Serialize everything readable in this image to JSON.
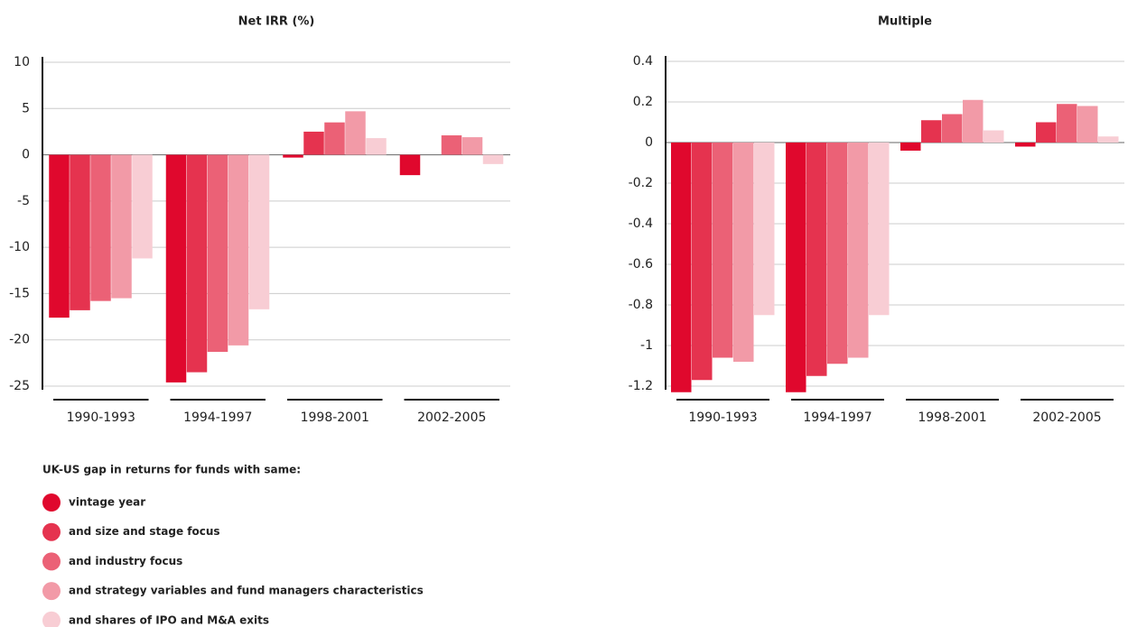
{
  "chart_data": [
    {
      "type": "bar",
      "title": "Net IRR (%)",
      "categories": [
        "1990-1993",
        "1994-1997",
        "1998-2001",
        "2002-2005"
      ],
      "ylim": [
        -25,
        10
      ],
      "yticks": [
        -25,
        -20,
        -15,
        -10,
        -5,
        0,
        5,
        10
      ],
      "grid": true,
      "legend_title": "UK-US gap in returns for funds with same:",
      "series": [
        {
          "name": "vintage year",
          "color": "#e0082d",
          "values": [
            -17.6,
            -24.6,
            -0.3,
            -2.2
          ]
        },
        {
          "name": "and size and stage focus",
          "color": "#e5334f",
          "values": [
            -16.8,
            -23.5,
            2.5,
            0
          ]
        },
        {
          "name": "and industry focus",
          "color": "#eb6176",
          "values": [
            -15.8,
            -21.3,
            3.5,
            2.1
          ]
        },
        {
          "name": "and strategy variables and fund managers characteristics",
          "color": "#f29aa7",
          "values": [
            -15.5,
            -20.6,
            4.7,
            1.9
          ]
        },
        {
          "name": "and shares of IPO and M&A exits",
          "color": "#f8cdd4",
          "values": [
            -11.2,
            -16.7,
            1.8,
            -1.0
          ]
        }
      ]
    },
    {
      "type": "bar",
      "title": "Multiple",
      "categories": [
        "1990-1993",
        "1994-1997",
        "1998-2001",
        "2002-2005"
      ],
      "ylim": [
        -1.2,
        0.4
      ],
      "yticks": [
        -1.2,
        -1,
        -0.8,
        -0.6,
        -0.4,
        -0.2,
        0,
        0.2,
        0.4
      ],
      "grid": true,
      "series": [
        {
          "color": "#e0082d",
          "values": [
            -1.23,
            -1.23,
            -0.04,
            -0.02
          ]
        },
        {
          "color": "#e5334f",
          "values": [
            -1.17,
            -1.15,
            0.11,
            0.1
          ]
        },
        {
          "color": "#eb6176",
          "values": [
            -1.06,
            -1.09,
            0.14,
            0.19
          ]
        },
        {
          "color": "#f29aa7",
          "values": [
            -1.08,
            -1.06,
            0.21,
            0.18
          ]
        },
        {
          "color": "#f8cdd4",
          "values": [
            -0.85,
            -0.85,
            0.06,
            0.03
          ]
        }
      ]
    }
  ]
}
